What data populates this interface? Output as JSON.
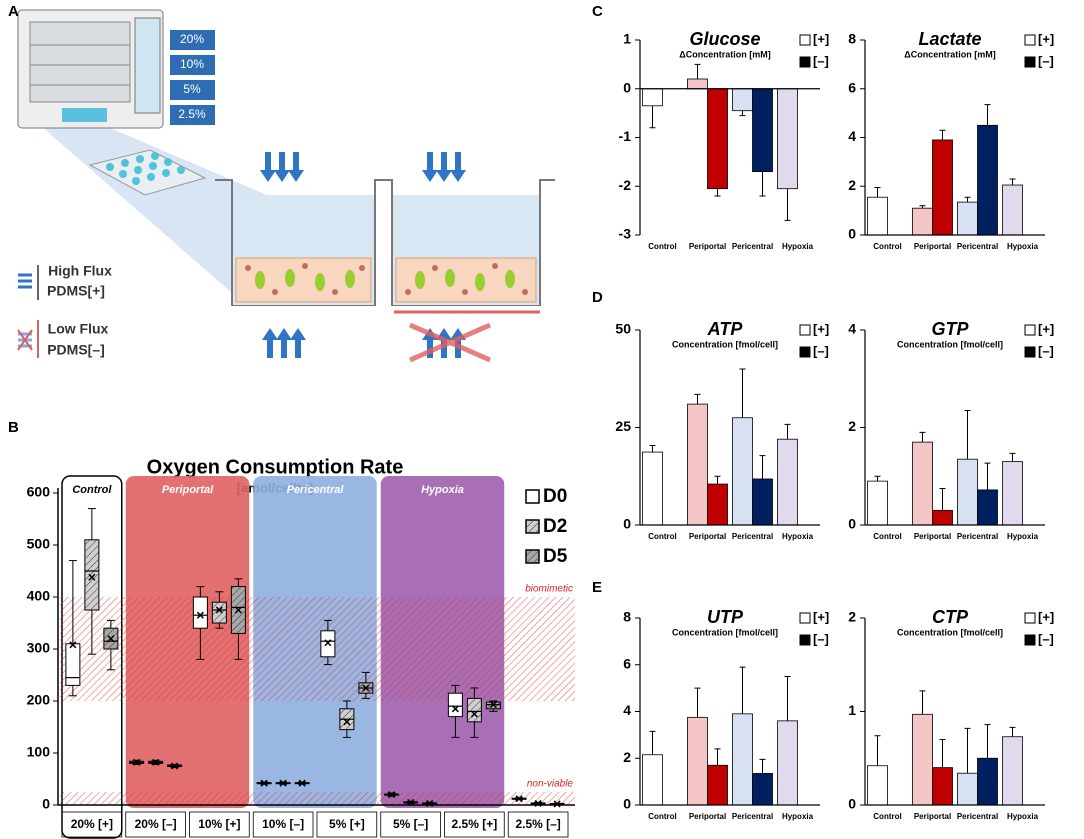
{
  "panel_labels": [
    "A",
    "B",
    "C",
    "D",
    "E"
  ],
  "diagram": {
    "oxygen_levels": [
      "20%",
      "10%",
      "5%",
      "2.5%"
    ],
    "high_flux": "High Flux",
    "high_flux_material": "PDMS[+]",
    "low_flux": "Low Flux",
    "low_flux_material": "PDMS[–]"
  },
  "chart_data": [
    {
      "type": "box",
      "title": "Oxygen Consumption Rate",
      "subtitle": "[amol/cell*s]",
      "categories": [
        "20% [+]",
        "20% [–]",
        "10% [+]",
        "10% [–]",
        "5% [+]",
        "5% [–]",
        "2.5% [+]",
        "2.5% [–]"
      ],
      "regions": [
        "Control",
        "Periportal",
        "Pericentral",
        "Hypoxia"
      ],
      "region_colors": [
        "#ffffff",
        "#e06262",
        "#8faedf",
        "#9f5fae"
      ],
      "bands": [
        {
          "label": "biomimetic",
          "range": [
            200,
            400
          ]
        },
        {
          "label": "non-viable",
          "range": [
            0,
            25
          ]
        }
      ],
      "ylim": [
        0,
        600
      ],
      "yticks": [
        0,
        100,
        200,
        300,
        400,
        500,
        600
      ],
      "series": [
        {
          "name": "D0",
          "color": "#ffffff",
          "min": [
            210,
            78,
            280,
            40,
            270,
            17,
            130,
            10
          ],
          "q1": [
            230,
            80,
            340,
            41,
            285,
            19,
            170,
            11
          ],
          "median": [
            245,
            82,
            365,
            42,
            315,
            20,
            190,
            12
          ],
          "q3": [
            310,
            84,
            400,
            43,
            335,
            21,
            215,
            13
          ],
          "max": [
            470,
            86,
            420,
            44,
            355,
            23,
            230,
            14
          ],
          "mean": [
            308,
            82,
            365,
            42,
            312,
            20,
            185,
            12
          ]
        },
        {
          "name": "D2",
          "color": "#cfcfcf",
          "min": [
            290,
            78,
            340,
            40,
            130,
            3,
            130,
            2
          ],
          "q1": [
            375,
            80,
            350,
            41,
            145,
            4,
            160,
            3
          ],
          "median": [
            450,
            82,
            375,
            42,
            165,
            5,
            180,
            3
          ],
          "q3": [
            510,
            84,
            390,
            43,
            185,
            6,
            205,
            4
          ],
          "max": [
            570,
            86,
            410,
            44,
            200,
            7,
            225,
            5
          ],
          "mean": [
            438,
            82,
            375,
            42,
            160,
            5,
            175,
            3
          ]
        },
        {
          "name": "D5",
          "color": "#a8a8a8",
          "min": [
            260,
            72,
            280,
            40,
            205,
            2,
            180,
            1
          ],
          "q1": [
            300,
            74,
            330,
            41,
            215,
            2,
            185,
            2
          ],
          "median": [
            315,
            75,
            380,
            42,
            225,
            3,
            193,
            2
          ],
          "q3": [
            340,
            77,
            420,
            43,
            235,
            4,
            198,
            3
          ],
          "max": [
            355,
            78,
            435,
            44,
            255,
            5,
            200,
            3
          ],
          "mean": [
            320,
            75,
            375,
            42,
            225,
            3,
            193,
            2
          ]
        }
      ]
    },
    {
      "type": "bar",
      "title": "Glucose",
      "subtitle": "ΔConcentration [mM]",
      "categories": [
        "Control",
        "Periportal",
        "Pericentral",
        "Hypoxia"
      ],
      "ylim": [
        -3,
        1
      ],
      "yticks": [
        -3,
        -2,
        -1,
        0,
        1
      ],
      "series": [
        {
          "name": "[+]",
          "color": "#ffffff",
          "colors": [
            "#ffffff",
            "#f4c6c6",
            "#d7e1f2",
            "#e2d9ee"
          ],
          "values": [
            -0.35,
            0.2,
            -0.45,
            -2.05
          ],
          "errors": [
            0.45,
            0.3,
            0.1,
            0.65
          ]
        },
        {
          "name": "[–]",
          "color": "#000000",
          "colors": [
            null,
            "#c00000",
            "#002060",
            null
          ],
          "values": [
            null,
            -2.05,
            -1.7,
            null
          ],
          "errors": [
            null,
            0.15,
            0.5,
            null
          ]
        }
      ]
    },
    {
      "type": "bar",
      "title": "Lactate",
      "subtitle": "ΔConcentration [mM]",
      "categories": [
        "Control",
        "Periportal",
        "Pericentral",
        "Hypoxia"
      ],
      "ylim": [
        0,
        8
      ],
      "yticks": [
        0,
        2,
        4,
        6,
        8
      ],
      "series": [
        {
          "name": "[+]",
          "color": "#ffffff",
          "colors": [
            "#ffffff",
            "#f4c6c6",
            "#d7e1f2",
            "#e2d9ee"
          ],
          "values": [
            1.55,
            1.1,
            1.35,
            2.05
          ],
          "errors": [
            0.4,
            0.1,
            0.2,
            0.25
          ]
        },
        {
          "name": "[–]",
          "color": "#000000",
          "colors": [
            null,
            "#c00000",
            "#002060",
            null
          ],
          "values": [
            null,
            3.9,
            4.5,
            null
          ],
          "errors": [
            null,
            0.4,
            0.85,
            null
          ]
        }
      ]
    },
    {
      "type": "bar",
      "title": "ATP",
      "subtitle": "Concentration [fmol/cell]",
      "categories": [
        "Control",
        "Periportal",
        "Pericentral",
        "Hypoxia"
      ],
      "ylim": [
        0,
        50
      ],
      "yticks": [
        0,
        25,
        50
      ],
      "series": [
        {
          "name": "[+]",
          "color": "#ffffff",
          "colors": [
            "#ffffff",
            "#f4c6c6",
            "#d7e1f2",
            "#e2d9ee"
          ],
          "values": [
            18.7,
            31,
            27.5,
            22
          ],
          "errors": [
            1.7,
            2.5,
            12.5,
            3.8
          ]
        },
        {
          "name": "[–]",
          "color": "#000000",
          "colors": [
            null,
            "#c00000",
            "#002060",
            null
          ],
          "values": [
            null,
            10.5,
            11.8,
            null
          ],
          "errors": [
            null,
            2,
            6,
            null
          ]
        }
      ]
    },
    {
      "type": "bar",
      "title": "GTP",
      "subtitle": "Concentration [fmol/cell]",
      "categories": [
        "Control",
        "Periportal",
        "Pericentral",
        "Hypoxia"
      ],
      "ylim": [
        0,
        4
      ],
      "yticks": [
        0,
        2,
        4
      ],
      "series": [
        {
          "name": "[+]",
          "color": "#ffffff",
          "colors": [
            "#ffffff",
            "#f4c6c6",
            "#d7e1f2",
            "#e2d9ee"
          ],
          "values": [
            0.9,
            1.7,
            1.35,
            1.3
          ],
          "errors": [
            0.1,
            0.2,
            1,
            0.17
          ]
        },
        {
          "name": "[–]",
          "color": "#000000",
          "colors": [
            null,
            "#c00000",
            "#002060",
            null
          ],
          "values": [
            null,
            0.3,
            0.72,
            null
          ],
          "errors": [
            null,
            0.45,
            0.55,
            null
          ]
        }
      ]
    },
    {
      "type": "bar",
      "title": "UTP",
      "subtitle": "Concentration [fmol/cell]",
      "categories": [
        "Control",
        "Periportal",
        "Pericentral",
        "Hypoxia"
      ],
      "ylim": [
        0,
        8
      ],
      "yticks": [
        0,
        2,
        4,
        6,
        8
      ],
      "series": [
        {
          "name": "[+]",
          "color": "#ffffff",
          "colors": [
            "#ffffff",
            "#f4c6c6",
            "#d7e1f2",
            "#e2d9ee"
          ],
          "values": [
            2.15,
            3.75,
            3.9,
            3.6
          ],
          "errors": [
            1,
            1.25,
            2,
            1.9
          ]
        },
        {
          "name": "[–]",
          "color": "#000000",
          "colors": [
            null,
            "#c00000",
            "#002060",
            null
          ],
          "values": [
            null,
            1.7,
            1.35,
            null
          ],
          "errors": [
            null,
            0.7,
            0.6,
            null
          ]
        }
      ]
    },
    {
      "type": "bar",
      "title": "CTP",
      "subtitle": "Concentration [fmol/cell]",
      "categories": [
        "Control",
        "Periportal",
        "Pericentral",
        "Hypoxia"
      ],
      "ylim": [
        0,
        2
      ],
      "yticks": [
        0,
        1,
        2
      ],
      "series": [
        {
          "name": "[+]",
          "color": "#ffffff",
          "colors": [
            "#ffffff",
            "#f4c6c6",
            "#d7e1f2",
            "#e2d9ee"
          ],
          "values": [
            0.42,
            0.97,
            0.34,
            0.73
          ],
          "errors": [
            0.32,
            0.25,
            0.48,
            0.1
          ]
        },
        {
          "name": "[–]",
          "color": "#000000",
          "colors": [
            null,
            "#c00000",
            "#002060",
            null
          ],
          "values": [
            null,
            0.4,
            0.5,
            null
          ],
          "errors": [
            null,
            0.3,
            0.36,
            null
          ]
        }
      ]
    }
  ]
}
